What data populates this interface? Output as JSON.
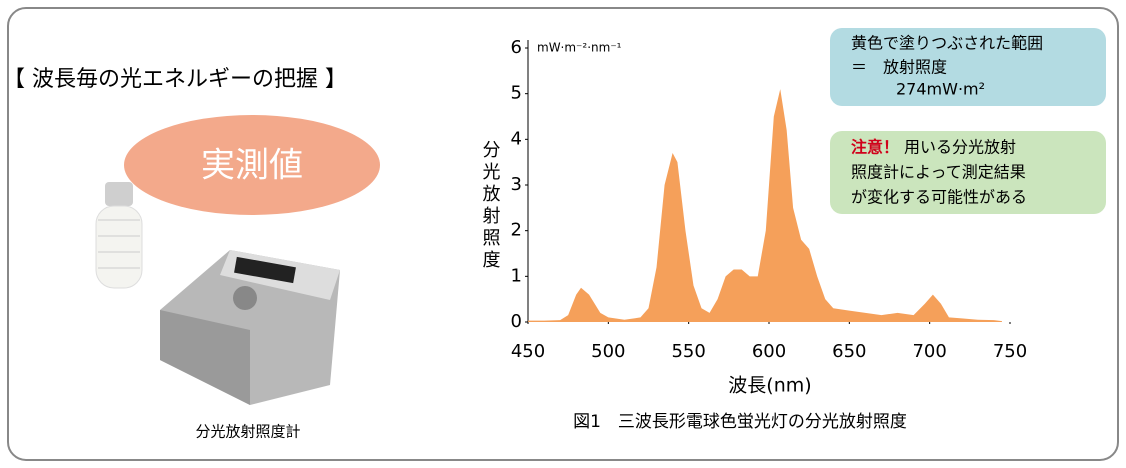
{
  "header": {
    "title": "【 波長毎の光エネルギーの把握 】"
  },
  "badge": "実測値",
  "device_caption": "分光放射照度計",
  "note_area": {
    "lines": [
      "黄色で塗りつぶされた範囲",
      "＝　放射照度",
      "274mW·m²"
    ]
  },
  "note_warning": {
    "emphasis": "注意！",
    "lines": [
      "用いる分光放射",
      "照度計によって測定結果",
      "が変化する可能性がある"
    ]
  },
  "chart_data": {
    "type": "area",
    "caption": "図1　三波長形電球色蛍光灯の分光放射照度",
    "x_label": "波長(nm)",
    "y_label": "分光放射照度",
    "y_unit": "mW·m⁻²·nm⁻¹",
    "color": "#f5a05a",
    "xlim": [
      450,
      750
    ],
    "xticks": [
      450,
      500,
      550,
      600,
      650,
      700,
      750
    ],
    "ylim": [
      0,
      6
    ],
    "yticks": [
      0,
      1,
      2,
      3,
      4,
      5,
      6
    ],
    "x": [
      450,
      460,
      470,
      475,
      480,
      483,
      488,
      495,
      500,
      510,
      520,
      525,
      530,
      535,
      540,
      543,
      548,
      553,
      558,
      563,
      568,
      573,
      578,
      583,
      588,
      593,
      598,
      603,
      607,
      611,
      615,
      620,
      625,
      630,
      635,
      640,
      650,
      660,
      670,
      680,
      690,
      697,
      702,
      707,
      712,
      720,
      730,
      740,
      745
    ],
    "values": [
      0.03,
      0.03,
      0.04,
      0.15,
      0.6,
      0.75,
      0.6,
      0.2,
      0.1,
      0.05,
      0.1,
      0.3,
      1.2,
      3.0,
      3.7,
      3.5,
      2.0,
      0.8,
      0.3,
      0.2,
      0.5,
      1.0,
      1.15,
      1.15,
      1.0,
      1.0,
      2.0,
      4.5,
      5.1,
      4.2,
      2.5,
      1.8,
      1.6,
      1.0,
      0.5,
      0.3,
      0.25,
      0.2,
      0.15,
      0.2,
      0.15,
      0.4,
      0.6,
      0.4,
      0.1,
      0.08,
      0.05,
      0.04,
      0.02
    ]
  }
}
